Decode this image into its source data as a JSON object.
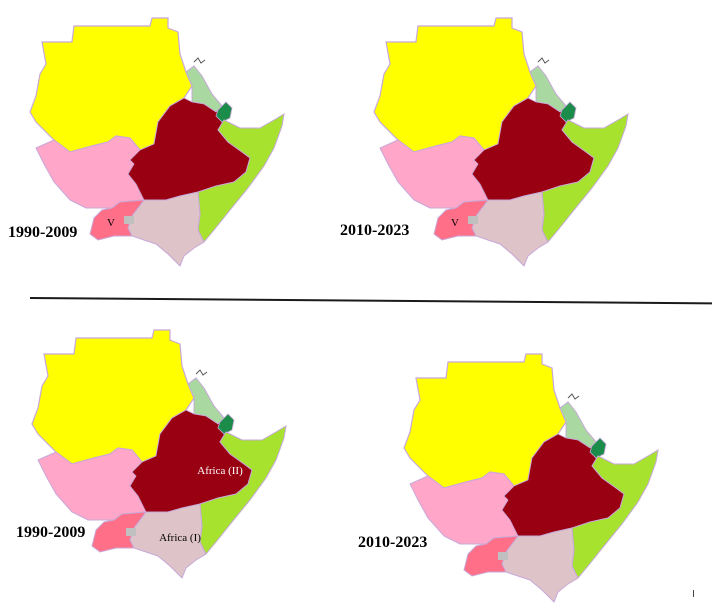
{
  "panels": [
    {
      "period": "1990-2009",
      "labels": {
        "uganda": "V"
      }
    },
    {
      "period": "2010-2023",
      "labels": {
        "uganda": "V"
      }
    },
    {
      "period": "1990-2009",
      "labels": {
        "ethiopia": "Africa (II)",
        "kenya": "Africa (I)"
      }
    },
    {
      "period": "2010-2023",
      "labels": {}
    }
  ],
  "colors": {
    "sudan": "#ffff00",
    "south_sudan": "#ffa6c9",
    "ethiopia": "#990011",
    "eritrea": "#a9d9a0",
    "djibouti": "#1c8c4a",
    "somalia": "#a6e22e",
    "kenya": "#dec4c8",
    "uganda": "#ff7088",
    "border": "#c8a8d8"
  }
}
